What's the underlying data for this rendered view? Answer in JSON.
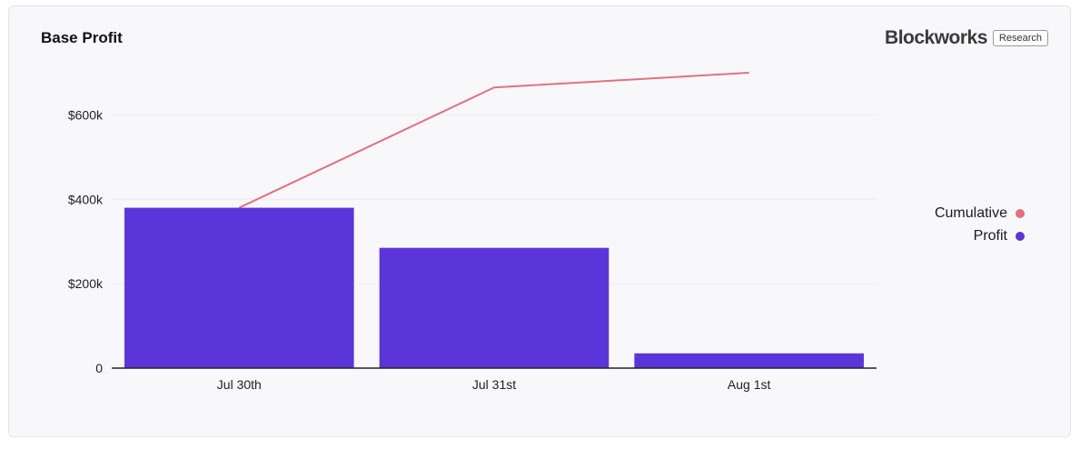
{
  "title": "Base Profit",
  "brand": {
    "logo_text": "Blockworks",
    "badge": "Research"
  },
  "colors": {
    "profit": "#5b35d9",
    "cumulative": "#e2717f",
    "grid": "#ececf2",
    "axis": "#222222"
  },
  "chart_data": {
    "type": "bar",
    "title": "Base Profit",
    "categories": [
      "Jul 30th",
      "Jul 31st",
      "Aug 1st"
    ],
    "series": [
      {
        "name": "Profit",
        "kind": "bar",
        "values": [
          380000,
          285000,
          35000
        ]
      },
      {
        "name": "Cumulative",
        "kind": "line",
        "values": [
          380000,
          665000,
          700000
        ]
      }
    ],
    "ylim": [
      0,
      700000
    ],
    "yticks": [
      0,
      200000,
      400000,
      600000
    ],
    "ytick_labels": [
      "0",
      "$200k",
      "$400k",
      "$600k"
    ],
    "xlabel": "",
    "ylabel": "",
    "grid": true,
    "legend_position": "right"
  }
}
